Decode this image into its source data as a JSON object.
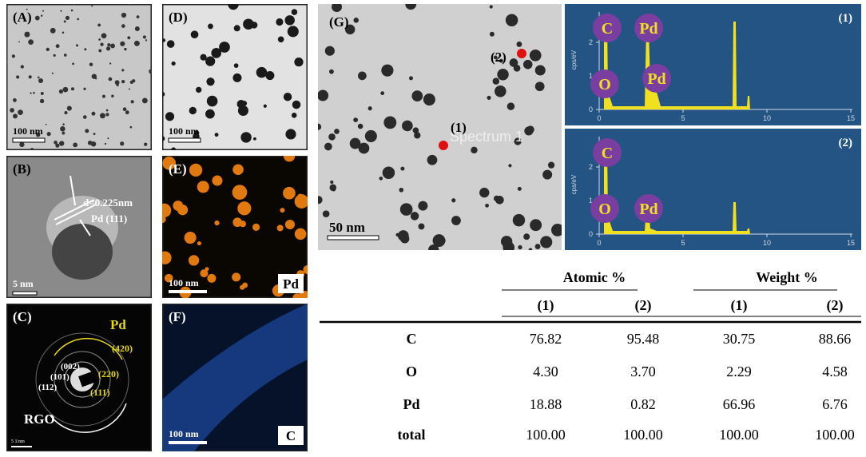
{
  "panels": {
    "A": {
      "label": "(A)",
      "scale": "100 nm"
    },
    "B": {
      "label": "(B)",
      "scale": "5 nm",
      "spacing": "d=0.225nm",
      "plane": "Pd (111)"
    },
    "C": {
      "label": "(C)",
      "element": "Pd",
      "rings": [
        "(420)",
        "(220)",
        "(111)",
        "(002)",
        "(101)",
        "(112)"
      ],
      "substrate": "RGO",
      "scale": "5 1/nm"
    },
    "D": {
      "label": "(D)",
      "scale": "100 nm"
    },
    "E": {
      "label": "(E)",
      "scale": "100 nm",
      "element": "Pd"
    },
    "F": {
      "label": "(F)",
      "scale": "100 nm",
      "element": "C"
    },
    "G": {
      "label": "(G)",
      "scale": "50 nm",
      "points": [
        "(1)",
        "(2)"
      ],
      "overlay": "Spectrum 1"
    }
  },
  "spectra": [
    {
      "label": "(1)",
      "peaks": [
        "C",
        "Pd",
        "O",
        "Pd"
      ],
      "y_axis": "cps/eV",
      "yticks": [
        2,
        1,
        0
      ],
      "xticks": [
        0,
        5,
        10,
        15
      ]
    },
    {
      "label": "(2)",
      "peaks": [
        "C",
        "O",
        "Pd"
      ],
      "y_axis": "cps/eV",
      "yticks": [
        2,
        1,
        0
      ],
      "xticks": [
        0,
        5,
        10,
        15
      ]
    }
  ],
  "table": {
    "groups": [
      "Atomic %",
      "Weight %"
    ],
    "subheaders": [
      "(1)",
      "(2)",
      "(1)",
      "(2)"
    ],
    "rows": [
      [
        "C",
        "76.82",
        "95.48",
        "30.75",
        "88.66"
      ],
      [
        "O",
        "4.30",
        "3.70",
        "2.29",
        "4.58"
      ],
      [
        "Pd",
        "18.88",
        "0.82",
        "66.96",
        "6.76"
      ],
      [
        "total",
        "100.00",
        "100.00",
        "100.00",
        "100.00"
      ]
    ]
  }
}
